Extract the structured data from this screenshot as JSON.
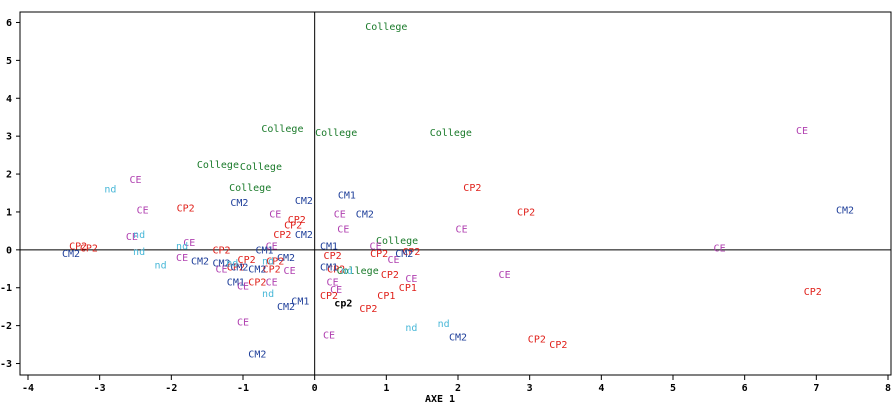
{
  "chart_data": {
    "type": "scatter",
    "title": "",
    "xlabel": "AXE 1",
    "ylabel": "",
    "xlim": [
      -4,
      8
    ],
    "ylim": [
      -3,
      6
    ],
    "xticks": [
      -4,
      -3,
      -2,
      -1,
      0,
      1,
      2,
      3,
      4,
      5,
      6,
      7,
      8
    ],
    "yticks": [
      -3,
      -2,
      -1,
      0,
      1,
      2,
      3,
      4,
      5,
      6
    ],
    "reference_lines": {
      "x": 0,
      "y": 0
    },
    "colors": {
      "College": "#1a7a2a",
      "CE": "#b040b0",
      "CP2": "#e0201a",
      "CP1": "#e0201a",
      "CM2": "#1f3f9a",
      "CM1": "#1f3f9a",
      "nd": "#4ab8d8",
      "cp2": "#000000"
    },
    "points": [
      {
        "label": "College",
        "x": 1.0,
        "y": 5.9
      },
      {
        "label": "College",
        "x": -0.45,
        "y": 3.2
      },
      {
        "label": "College",
        "x": 0.3,
        "y": 3.1
      },
      {
        "label": "College",
        "x": 1.9,
        "y": 3.1
      },
      {
        "label": "College",
        "x": -1.35,
        "y": 2.25
      },
      {
        "label": "College",
        "x": -0.75,
        "y": 2.2
      },
      {
        "label": "College",
        "x": -0.9,
        "y": 1.65
      },
      {
        "label": "College",
        "x": 1.15,
        "y": 0.25
      },
      {
        "label": "College",
        "x": 0.6,
        "y": -0.55
      },
      {
        "label": "CE",
        "x": 6.8,
        "y": 3.15
      },
      {
        "label": "CE",
        "x": -2.5,
        "y": 1.85
      },
      {
        "label": "CE",
        "x": -2.4,
        "y": 1.05
      },
      {
        "label": "CE",
        "x": -0.55,
        "y": 0.95
      },
      {
        "label": "CE",
        "x": 0.35,
        "y": 0.95
      },
      {
        "label": "CE",
        "x": 0.4,
        "y": 0.55
      },
      {
        "label": "CE",
        "x": 2.05,
        "y": 0.55
      },
      {
        "label": "CE",
        "x": -2.55,
        "y": 0.35
      },
      {
        "label": "CE",
        "x": -1.75,
        "y": 0.2
      },
      {
        "label": "CE",
        "x": 5.65,
        "y": 0.05
      },
      {
        "label": "CE",
        "x": 0.85,
        "y": 0.1
      },
      {
        "label": "CE",
        "x": -0.6,
        "y": 0.1
      },
      {
        "label": "CE",
        "x": -1.85,
        "y": -0.2
      },
      {
        "label": "CE",
        "x": 1.1,
        "y": -0.25
      },
      {
        "label": "CE",
        "x": -1.3,
        "y": -0.5
      },
      {
        "label": "CE",
        "x": -0.35,
        "y": -0.55
      },
      {
        "label": "CE",
        "x": 2.65,
        "y": -0.65
      },
      {
        "label": "CE",
        "x": 1.35,
        "y": -0.75
      },
      {
        "label": "CE",
        "x": 0.25,
        "y": -0.85
      },
      {
        "label": "CE",
        "x": -0.6,
        "y": -0.85
      },
      {
        "label": "CE",
        "x": -1.0,
        "y": -0.95
      },
      {
        "label": "CE",
        "x": 0.3,
        "y": -1.05
      },
      {
        "label": "CE",
        "x": -1.0,
        "y": -1.9
      },
      {
        "label": "CE",
        "x": 0.2,
        "y": -2.25
      },
      {
        "label": "CP2",
        "x": 2.2,
        "y": 1.65
      },
      {
        "label": "CP2",
        "x": -1.8,
        "y": 1.1
      },
      {
        "label": "CP2",
        "x": 2.95,
        "y": 1.0
      },
      {
        "label": "CP2",
        "x": -0.25,
        "y": 0.8
      },
      {
        "label": "CP2",
        "x": -0.3,
        "y": 0.65
      },
      {
        "label": "CP2",
        "x": -0.45,
        "y": 0.4
      },
      {
        "label": "CP2",
        "x": -3.3,
        "y": 0.1
      },
      {
        "label": "CP2",
        "x": -3.15,
        "y": 0.05
      },
      {
        "label": "CP2",
        "x": 1.35,
        "y": -0.05
      },
      {
        "label": "CP2",
        "x": 0.9,
        "y": -0.1
      },
      {
        "label": "CP2",
        "x": -1.3,
        "y": 0.0
      },
      {
        "label": "CP2",
        "x": 0.25,
        "y": -0.15
      },
      {
        "label": "CP2",
        "x": -0.95,
        "y": -0.25
      },
      {
        "label": "CP2",
        "x": -0.55,
        "y": -0.3
      },
      {
        "label": "CP2",
        "x": 0.3,
        "y": -0.5
      },
      {
        "label": "CP2",
        "x": -0.6,
        "y": -0.5
      },
      {
        "label": "CP2",
        "x": 1.05,
        "y": -0.65
      },
      {
        "label": "CP2",
        "x": -0.8,
        "y": -0.85
      },
      {
        "label": "CP2",
        "x": 0.2,
        "y": -1.2
      },
      {
        "label": "CP2",
        "x": 0.75,
        "y": -1.55
      },
      {
        "label": "CP2",
        "x": 6.95,
        "y": -1.1
      },
      {
        "label": "CP2",
        "x": 3.1,
        "y": -2.35
      },
      {
        "label": "CP2",
        "x": 3.4,
        "y": -2.5
      },
      {
        "label": "CP2",
        "x": -1.1,
        "y": -0.45
      },
      {
        "label": "CP1",
        "x": 1.3,
        "y": -1.0
      },
      {
        "label": "CP1",
        "x": 1.0,
        "y": -1.2
      },
      {
        "label": "CM2",
        "x": 7.4,
        "y": 1.05
      },
      {
        "label": "CM2",
        "x": -1.05,
        "y": 1.25
      },
      {
        "label": "CM2",
        "x": -0.15,
        "y": 1.3
      },
      {
        "label": "CM2",
        "x": 0.7,
        "y": 0.95
      },
      {
        "label": "CM2",
        "x": -0.15,
        "y": 0.4
      },
      {
        "label": "CM2",
        "x": -3.4,
        "y": -0.1
      },
      {
        "label": "CM2",
        "x": -1.6,
        "y": -0.3
      },
      {
        "label": "CM2",
        "x": -1.3,
        "y": -0.35
      },
      {
        "label": "CM2",
        "x": -0.4,
        "y": -0.2
      },
      {
        "label": "CM2",
        "x": -0.8,
        "y": -0.5
      },
      {
        "label": "CM2",
        "x": 1.25,
        "y": -0.1
      },
      {
        "label": "CM2",
        "x": -0.4,
        "y": -1.5
      },
      {
        "label": "CM2",
        "x": 2.0,
        "y": -2.3
      },
      {
        "label": "CM2",
        "x": -0.8,
        "y": -2.75
      },
      {
        "label": "CM2",
        "x": -1.05,
        "y": -0.45
      },
      {
        "label": "CM1",
        "x": 0.45,
        "y": 1.45
      },
      {
        "label": "CM1",
        "x": 0.2,
        "y": 0.1
      },
      {
        "label": "CM1",
        "x": -0.7,
        "y": 0.0
      },
      {
        "label": "CM1",
        "x": 0.2,
        "y": -0.45
      },
      {
        "label": "CM1",
        "x": -1.1,
        "y": -0.85
      },
      {
        "label": "CM1",
        "x": -0.2,
        "y": -1.35
      },
      {
        "label": "nd",
        "x": -2.85,
        "y": 1.6
      },
      {
        "label": "nd",
        "x": -2.45,
        "y": 0.4
      },
      {
        "label": "nd",
        "x": -2.45,
        "y": -0.05
      },
      {
        "label": "nd",
        "x": -1.85,
        "y": 0.1
      },
      {
        "label": "nd",
        "x": -2.15,
        "y": -0.4
      },
      {
        "label": "nd",
        "x": -1.15,
        "y": -0.35
      },
      {
        "label": "nd",
        "x": -0.65,
        "y": -0.3
      },
      {
        "label": "nd",
        "x": 0.45,
        "y": -0.55
      },
      {
        "label": "nd",
        "x": -0.65,
        "y": -1.15
      },
      {
        "label": "nd",
        "x": 1.35,
        "y": -2.05
      },
      {
        "label": "nd",
        "x": 1.8,
        "y": -1.95
      },
      {
        "label": "cp2",
        "x": 0.4,
        "y": -1.4
      }
    ]
  }
}
